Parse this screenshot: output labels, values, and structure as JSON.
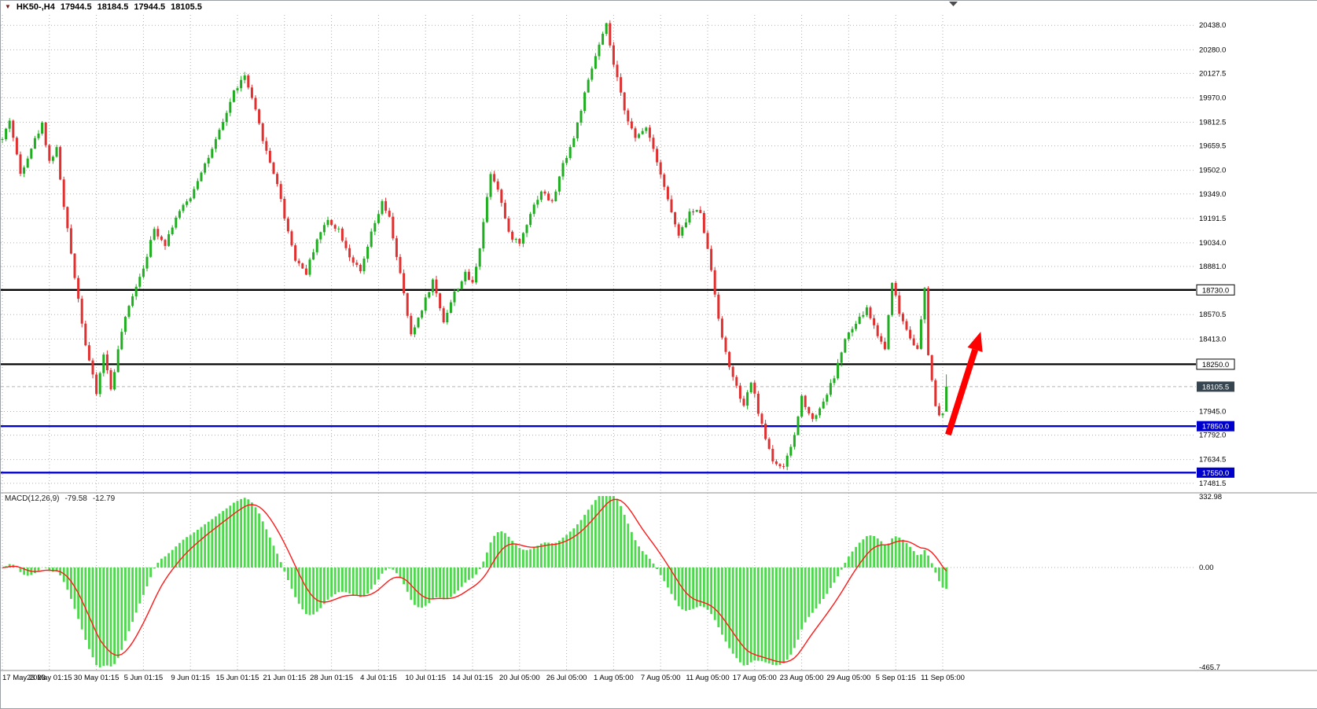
{
  "window": {
    "symbol_title": "HK50-,H4",
    "quote": {
      "open": "17944.5",
      "high": "18184.5",
      "low": "17944.5",
      "close": "18105.5"
    }
  },
  "macd_panel": {
    "label": "MACD(12,26,9)",
    "main_value": "-79.58",
    "signal_value": "-12.79"
  },
  "colors": {
    "bull": "#1fae1f",
    "bear": "#e03030",
    "macd_hist": "#4cd94c",
    "macd_signal": "#ff1a1a",
    "grid": "#a9b0bd",
    "axis_text": "#000000",
    "current_line": "#b5b5b5"
  },
  "chart_data": {
    "type": "candlestick",
    "symbol": "HK50",
    "timeframe": "H4",
    "price_axis": {
      "ylim": [
        17440,
        20505
      ],
      "ticks": [
        "20438.0",
        "20280.0",
        "20127.5",
        "19970.0",
        "19812.5",
        "19659.5",
        "19502.0",
        "19349.0",
        "19191.5",
        "19034.0",
        "18881.0",
        "18570.5",
        "18413.0",
        "17945.0",
        "17792.0",
        "17634.5",
        "17481.5"
      ]
    },
    "levels": [
      {
        "price": 18730.0,
        "label": "18730.0",
        "color": "#000000",
        "style": "outline",
        "name": "resistance-line-18730"
      },
      {
        "price": 18250.0,
        "label": "18250.0",
        "color": "#000000",
        "style": "outline",
        "name": "resistance-line-18250"
      },
      {
        "price": 18105.5,
        "label": "18105.5",
        "color": "#36454f",
        "style": "current",
        "name": "current-price-line-18105"
      },
      {
        "price": 17850.0,
        "label": "17850.0",
        "color": "#0000cc",
        "style": "filled",
        "name": "support-line-17850"
      },
      {
        "price": 17550.0,
        "label": "17550.0",
        "color": "#0000cc",
        "style": "filled",
        "name": "support-line-17550"
      }
    ],
    "x_labels": [
      {
        "bar": 0,
        "text": "17 May 2023"
      },
      {
        "bar": 13,
        "text": "23 May 01:15"
      },
      {
        "bar": 26,
        "text": "30 May 01:15"
      },
      {
        "bar": 39,
        "text": "5 Jun 01:15"
      },
      {
        "bar": 52,
        "text": "9 Jun 01:15"
      },
      {
        "bar": 65,
        "text": "15 Jun 01:15"
      },
      {
        "bar": 78,
        "text": "21 Jun 01:15"
      },
      {
        "bar": 91,
        "text": "28 Jun 01:15"
      },
      {
        "bar": 104,
        "text": "4 Jul 01:15"
      },
      {
        "bar": 117,
        "text": "10 Jul 01:15"
      },
      {
        "bar": 130,
        "text": "14 Jul 01:15"
      },
      {
        "bar": 143,
        "text": "20 Jul 05:00"
      },
      {
        "bar": 156,
        "text": "26 Jul 05:00"
      },
      {
        "bar": 169,
        "text": "1 Aug 05:00"
      },
      {
        "bar": 182,
        "text": "7 Aug 05:00"
      },
      {
        "bar": 195,
        "text": "11 Aug 05:00"
      },
      {
        "bar": 208,
        "text": "17 Aug 05:00"
      },
      {
        "bar": 221,
        "text": "23 Aug 05:00"
      },
      {
        "bar": 234,
        "text": "29 Aug 05:00"
      },
      {
        "bar": 247,
        "text": "5 Sep 01:15"
      },
      {
        "bar": 260,
        "text": "11 Sep 05:00"
      }
    ],
    "bars": {
      "count": 262,
      "seed": 42,
      "noise": 34,
      "wick": 24,
      "waypoints": [
        [
          0,
          19700
        ],
        [
          2,
          19830
        ],
        [
          5,
          19480
        ],
        [
          8,
          19650
        ],
        [
          11,
          19800
        ],
        [
          13,
          19560
        ],
        [
          15,
          19640
        ],
        [
          17,
          19260
        ],
        [
          20,
          18820
        ],
        [
          23,
          18380
        ],
        [
          26,
          18060
        ],
        [
          28,
          18320
        ],
        [
          30,
          18090
        ],
        [
          33,
          18460
        ],
        [
          36,
          18700
        ],
        [
          39,
          18880
        ],
        [
          42,
          19120
        ],
        [
          45,
          19030
        ],
        [
          48,
          19200
        ],
        [
          52,
          19330
        ],
        [
          55,
          19500
        ],
        [
          58,
          19630
        ],
        [
          61,
          19810
        ],
        [
          64,
          20010
        ],
        [
          67,
          20110
        ],
        [
          70,
          19880
        ],
        [
          73,
          19620
        ],
        [
          76,
          19420
        ],
        [
          78,
          19200
        ],
        [
          81,
          18930
        ],
        [
          84,
          18840
        ],
        [
          87,
          19060
        ],
        [
          90,
          19180
        ],
        [
          93,
          19120
        ],
        [
          96,
          18950
        ],
        [
          99,
          18840
        ],
        [
          102,
          19090
        ],
        [
          105,
          19290
        ],
        [
          107,
          19190
        ],
        [
          110,
          18830
        ],
        [
          113,
          18430
        ],
        [
          116,
          18610
        ],
        [
          119,
          18790
        ],
        [
          122,
          18530
        ],
        [
          125,
          18710
        ],
        [
          128,
          18830
        ],
        [
          130,
          18770
        ],
        [
          132,
          19010
        ],
        [
          135,
          19490
        ],
        [
          137,
          19390
        ],
        [
          140,
          19090
        ],
        [
          143,
          19030
        ],
        [
          146,
          19230
        ],
        [
          149,
          19370
        ],
        [
          152,
          19290
        ],
        [
          155,
          19540
        ],
        [
          158,
          19710
        ],
        [
          161,
          19990
        ],
        [
          164,
          20240
        ],
        [
          167,
          20438
        ],
        [
          169,
          20180
        ],
        [
          172,
          19900
        ],
        [
          175,
          19700
        ],
        [
          178,
          19790
        ],
        [
          181,
          19570
        ],
        [
          184,
          19310
        ],
        [
          187,
          19070
        ],
        [
          190,
          19230
        ],
        [
          193,
          19240
        ],
        [
          196,
          18860
        ],
        [
          199,
          18410
        ],
        [
          202,
          18160
        ],
        [
          205,
          17970
        ],
        [
          207,
          18140
        ],
        [
          210,
          17850
        ],
        [
          213,
          17630
        ],
        [
          216,
          17575
        ],
        [
          219,
          17790
        ],
        [
          221,
          18040
        ],
        [
          224,
          17890
        ],
        [
          227,
          18010
        ],
        [
          230,
          18170
        ],
        [
          233,
          18410
        ],
        [
          236,
          18510
        ],
        [
          239,
          18610
        ],
        [
          242,
          18440
        ],
        [
          244,
          18350
        ],
        [
          246,
          18790
        ],
        [
          248,
          18580
        ],
        [
          251,
          18430
        ],
        [
          253,
          18340
        ],
        [
          255,
          18730
        ],
        [
          256,
          18310
        ],
        [
          257,
          18150
        ],
        [
          258,
          17980
        ],
        [
          259,
          17905
        ],
        [
          260,
          17944
        ],
        [
          261,
          18105
        ]
      ]
    },
    "last_candle": {
      "open": 17944.5,
      "high": 18184.5,
      "low": 17944.5,
      "close": 18105.5
    },
    "macd": {
      "fast": 12,
      "slow": 26,
      "signal": 9,
      "display_main": "-79.58",
      "display_signal": "-12.79",
      "axis": {
        "top": "332.98",
        "zero": "0.00",
        "bottom": "-465.7"
      }
    },
    "annotation_arrow": {
      "from_bar": 261.5,
      "from_price": 17795,
      "to_bar": 270.5,
      "to_price": 18460,
      "color": "#ff0000"
    }
  }
}
